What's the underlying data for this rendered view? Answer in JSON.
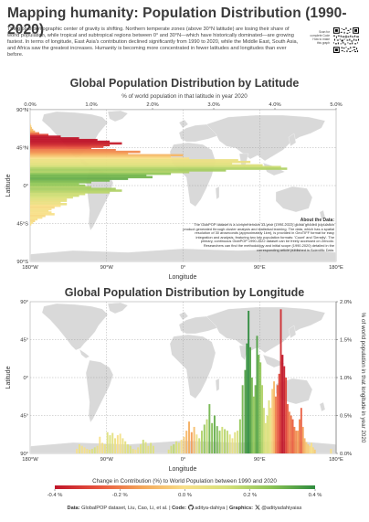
{
  "header": {
    "title": "Mapping humanity: Population Distribution (1990-2020)",
    "intro": "The global demographic center of gravity is shifting. Northern temperate zones (above 30°N latitude) are losing their share of world population, while tropical and subtropical regions between 0° and 30°N—which have historically dominated—are growing fastest. In terms of longitude, East Asia's contribution declined significantly from 1990 to 2020, while the Middle East, South Asia, and Africa saw the greatest increases. Humanity is becoming more concentrated in fewer latitudes and longitudes than ever before.",
    "qr_caption": "Scan for complete Code How to make this graph",
    "qr_icon": "qr-code-icon"
  },
  "chart_data": [
    {
      "type": "bar",
      "orientation": "horizontal",
      "title": "Global Population Distribution by Latitude",
      "subtitle": "% of world population in that latitude in year 2020",
      "xlabel": "Longitude",
      "ylabel": "Latitude",
      "x_top_ticks": [
        "0.0%",
        "1.0%",
        "2.0%",
        "3.0%",
        "4.0%",
        "5.0%"
      ],
      "x_bottom_ticks": [
        "180°W",
        "90°W",
        "0°",
        "90°E",
        "180°E"
      ],
      "y_ticks": [
        "90°N",
        "45°N",
        "0°",
        "45°S",
        "90°S"
      ],
      "xlim": [
        0,
        5
      ],
      "ylim": [
        -90,
        90
      ],
      "latitudes": [
        72,
        70,
        68,
        66,
        64,
        62,
        60,
        58,
        56,
        54,
        52,
        50,
        48,
        46,
        44,
        42,
        40,
        38,
        36,
        34,
        32,
        30,
        28,
        26,
        24,
        22,
        20,
        18,
        16,
        14,
        12,
        10,
        8,
        6,
        4,
        2,
        0,
        -2,
        -4,
        -6,
        -8,
        -10,
        -12,
        -14,
        -16,
        -18,
        -20,
        -22,
        -24,
        -26,
        -28,
        -30,
        -32,
        -34,
        -36,
        -38,
        -40,
        -42,
        -44,
        -46
      ],
      "values": [
        0.01,
        0.02,
        0.03,
        0.05,
        0.08,
        0.15,
        0.3,
        0.5,
        0.8,
        1.1,
        1.3,
        1.5,
        1.3,
        1.2,
        1.0,
        1.4,
        1.8,
        1.6,
        2.5,
        2.3,
        2.6,
        3.4,
        3.6,
        3.3,
        3.8,
        4.1,
        4.2,
        3.2,
        2.6,
        2.3,
        1.9,
        2.0,
        1.6,
        1.3,
        1.0,
        0.8,
        0.9,
        1.0,
        1.4,
        1.5,
        1.3,
        0.9,
        0.8,
        0.7,
        0.6,
        0.6,
        0.5,
        0.6,
        0.5,
        0.4,
        0.35,
        0.3,
        0.35,
        0.4,
        0.25,
        0.2,
        0.12,
        0.08,
        0.05,
        0.02
      ],
      "change": [
        -0.05,
        -0.05,
        -0.06,
        -0.08,
        -0.12,
        -0.2,
        -0.3,
        -0.4,
        -0.4,
        -0.42,
        -0.4,
        -0.38,
        -0.35,
        -0.3,
        -0.25,
        -0.2,
        -0.18,
        -0.15,
        -0.1,
        -0.05,
        0.0,
        0.05,
        0.05,
        0.08,
        0.1,
        0.15,
        0.2,
        0.22,
        0.2,
        0.25,
        0.3,
        0.3,
        0.32,
        0.3,
        0.28,
        0.25,
        0.25,
        0.2,
        0.22,
        0.2,
        0.18,
        0.15,
        0.15,
        0.12,
        0.1,
        0.08,
        0.05,
        0.05,
        0.0,
        -0.02,
        0.0,
        0.02,
        0.0,
        0.0,
        -0.02,
        0.0,
        0.0,
        -0.02,
        0.0,
        0.0
      ],
      "annotation": {
        "heading": "About the Data:",
        "body": "The GlobPOP dataset is a comprehensive 33-year (1990-2022) global gridded population product generated through cluster analysis and statistical learning. The data, which has a spatial resolution of 30 arcseconds (approximately 1km), is provided in GeoTIFF format for easy integration and analysis, featuring two key population formats: 'Count' and 'Density'. The primary, continuous GlobPOP 1990-2022 dataset can be freely accessed on Zenodo. Researchers can find the methodology and initial scope (1990-2020) detailed in the corresponding article published in Scientific Data."
      }
    },
    {
      "type": "bar",
      "orientation": "vertical",
      "title": "Global Population Distribution by Longitude",
      "xlabel": "Longitude",
      "ylabel": "Latitude",
      "y2label": "% of world population in that longitude in year 2020",
      "x_ticks": [
        "180°W",
        "90°W",
        "0°",
        "90°E",
        "180°E"
      ],
      "y_ticks": [
        "90°",
        "45°",
        "0°",
        "45°",
        "90°"
      ],
      "y2_ticks": [
        "2.0%",
        "1.5%",
        "1.0%",
        "0.5%",
        "0.0%"
      ],
      "ylim": [
        0,
        2.0
      ],
      "longitudes": [
        -125,
        -122,
        -119,
        -116,
        -113,
        -110,
        -107,
        -104,
        -101,
        -98,
        -95,
        -92,
        -89,
        -86,
        -83,
        -80,
        -77,
        -74,
        -71,
        -68,
        -65,
        -62,
        -59,
        -56,
        -53,
        -50,
        -47,
        -44,
        -41,
        -38,
        -35,
        -17,
        -14,
        -11,
        -8,
        -5,
        -2,
        1,
        4,
        7,
        10,
        13,
        16,
        19,
        22,
        25,
        28,
        31,
        34,
        37,
        40,
        43,
        46,
        49,
        52,
        55,
        58,
        61,
        64,
        67,
        70,
        73,
        75,
        77,
        79,
        81,
        83,
        85,
        87,
        89,
        91,
        93,
        95,
        97,
        99,
        101,
        103,
        105,
        107,
        109,
        111,
        113,
        115,
        117,
        119,
        121,
        123,
        125,
        127,
        129,
        131,
        133,
        135,
        137,
        139,
        141,
        143,
        145,
        147,
        149,
        151,
        153,
        155,
        174
      ],
      "values": [
        0.06,
        0.12,
        0.1,
        0.08,
        0.06,
        0.05,
        0.06,
        0.08,
        0.1,
        0.22,
        0.14,
        0.12,
        0.28,
        0.24,
        0.27,
        0.2,
        0.24,
        0.26,
        0.2,
        0.16,
        0.12,
        0.1,
        0.06,
        0.05,
        0.08,
        0.12,
        0.18,
        0.15,
        0.1,
        0.14,
        0.1,
        0.05,
        0.1,
        0.12,
        0.16,
        0.14,
        0.18,
        0.22,
        0.3,
        0.42,
        0.28,
        0.35,
        0.25,
        0.2,
        0.3,
        0.38,
        0.45,
        0.65,
        0.4,
        0.5,
        0.36,
        0.3,
        0.35,
        0.32,
        0.3,
        0.25,
        0.2,
        0.28,
        0.3,
        0.45,
        0.9,
        1.1,
        1.45,
        1.88,
        1.4,
        1.0,
        0.75,
        0.9,
        1.55,
        1.3,
        1.2,
        0.9,
        0.6,
        0.4,
        0.5,
        0.7,
        0.6,
        0.85,
        0.95,
        0.75,
        0.9,
        1.05,
        1.9,
        1.3,
        1.15,
        1.0,
        0.65,
        0.55,
        0.5,
        0.45,
        0.35,
        0.3,
        0.3,
        0.45,
        0.6,
        0.35,
        0.2,
        0.15,
        0.12,
        0.1,
        0.14,
        0.08,
        0.05,
        0.06
      ],
      "change": [
        0.0,
        0.05,
        0.02,
        0.0,
        0.02,
        0.05,
        0.1,
        0.12,
        0.05,
        0.0,
        0.02,
        0.05,
        0.1,
        0.12,
        0.08,
        0.05,
        0.0,
        0.02,
        0.05,
        0.08,
        0.1,
        0.12,
        0.05,
        0.0,
        0.05,
        0.1,
        0.15,
        0.1,
        0.08,
        0.12,
        0.1,
        0.1,
        0.15,
        0.18,
        0.12,
        0.1,
        0.0,
        -0.05,
        -0.1,
        -0.12,
        -0.15,
        -0.08,
        0.05,
        0.15,
        0.2,
        0.25,
        0.18,
        0.3,
        0.28,
        0.32,
        0.3,
        0.25,
        0.15,
        0.2,
        0.18,
        0.1,
        0.05,
        0.1,
        0.12,
        0.25,
        0.3,
        0.35,
        0.38,
        0.4,
        0.35,
        0.3,
        0.25,
        0.3,
        0.35,
        0.3,
        0.25,
        0.2,
        0.15,
        0.1,
        0.12,
        0.1,
        0.05,
        -0.05,
        -0.1,
        -0.2,
        -0.25,
        -0.3,
        -0.35,
        -0.4,
        -0.38,
        -0.3,
        -0.25,
        -0.2,
        -0.22,
        -0.25,
        -0.2,
        -0.18,
        -0.15,
        -0.2,
        -0.25,
        -0.15,
        -0.1,
        -0.05,
        -0.05,
        -0.02,
        0.0,
        -0.02,
        -0.05,
        0.0
      ]
    }
  ],
  "legend": {
    "title": "Change in Contribution (%) to World Population between 1990 and 2020",
    "ticks": [
      "-0.4 %",
      "-0.2 %",
      "0.0 %",
      "0.2 %",
      "0.4 %"
    ],
    "colors": [
      "#c0152a",
      "#e8553e",
      "#f4a85a",
      "#f8e08a",
      "#d6e07a",
      "#8cc456",
      "#2e8b3e"
    ]
  },
  "footer": {
    "data_label": "Data:",
    "data_text": "GlobalPOP dataset, Liu, Cao, Li, et al.",
    "code_label": "Code:",
    "code_icon": "github-icon",
    "code_text": "aditya-dahiya",
    "graphics_label": "Graphics:",
    "graphics_icon": "x-logo-icon",
    "graphics_text": "@adityadahiyaias"
  },
  "colors": {
    "map_land": "#d9d9d9",
    "map_bg": "#ffffff",
    "panel_border": "#999999",
    "grid": "#999999",
    "title": "#3a3a3a"
  }
}
